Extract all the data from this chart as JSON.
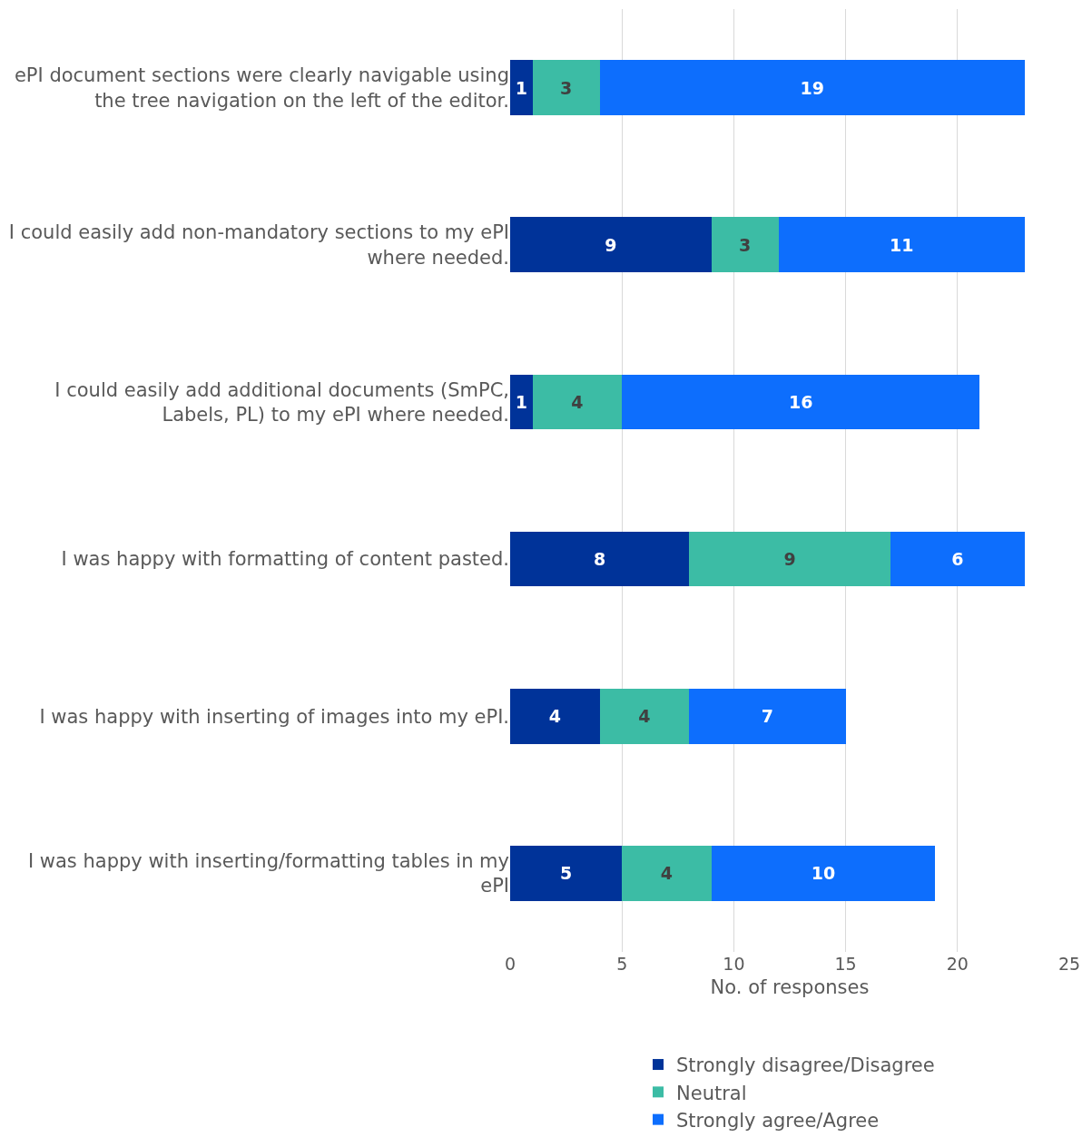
{
  "chart_data": {
    "type": "bar",
    "orientation": "horizontal",
    "stacked": true,
    "xlabel": "No. of responses",
    "categories": [
      "ePI document sections were clearly navigable using the tree navigation on the left of the editor.",
      "I could easily add non-mandatory sections to my ePI where needed.",
      "I could easily add additional documents (SmPC, Labels, PL) to my ePI where needed.",
      "I was happy with formatting of content pasted.",
      "I was happy with inserting of images into my ePI.",
      "I was happy with inserting/formatting tables in my ePI"
    ],
    "series": [
      {
        "name": "Strongly disagree/Disagree",
        "color": "#003399",
        "values": [
          1,
          9,
          1,
          8,
          4,
          5
        ]
      },
      {
        "name": "Neutral",
        "color": "#3cbca5",
        "values": [
          3,
          3,
          4,
          9,
          4,
          4
        ]
      },
      {
        "name": "Strongly agree/Agree",
        "color": "#0d6efd",
        "values": [
          19,
          11,
          16,
          6,
          7,
          10
        ]
      }
    ],
    "xlim": [
      0,
      25
    ],
    "xticks": [
      0,
      5,
      10,
      15,
      20,
      25
    ],
    "grid": "x",
    "legend": "bottom",
    "data_labels": true
  }
}
